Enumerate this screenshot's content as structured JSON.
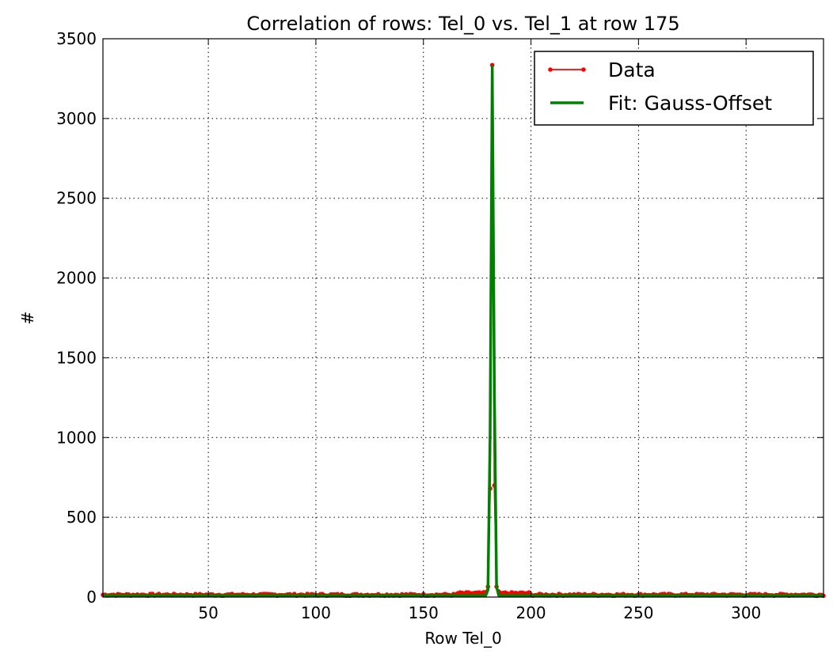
{
  "chart_data": {
    "type": "line",
    "title": "Correlation of rows: Tel_0 vs. Tel_1 at row 175",
    "xlabel": "Row Tel_0",
    "ylabel": "#",
    "xlim": [
      1,
      336
    ],
    "ylim": [
      0,
      3500
    ],
    "xticks": [
      50,
      100,
      150,
      200,
      250,
      300
    ],
    "yticks": [
      0,
      500,
      1000,
      1500,
      2000,
      2500,
      3000,
      3500
    ],
    "grid": true,
    "legend": "top-right",
    "series": [
      {
        "name": "Data",
        "color": "#ff0000",
        "style": "line-with-dots",
        "baseline": 14,
        "baseline_x_range": [
          1,
          336
        ],
        "peak": [
          [
            179,
            30
          ],
          [
            180,
            65
          ],
          [
            181,
            680
          ],
          [
            182,
            3335
          ],
          [
            183,
            700
          ],
          [
            184,
            65
          ],
          [
            185,
            35
          ],
          [
            186,
            25
          ]
        ]
      },
      {
        "name": "Fit: Gauss-Offset",
        "color": "#008000",
        "style": "line",
        "offset": 10,
        "amplitude": 3325,
        "center": 182.05,
        "sigma": 0.68
      }
    ]
  }
}
